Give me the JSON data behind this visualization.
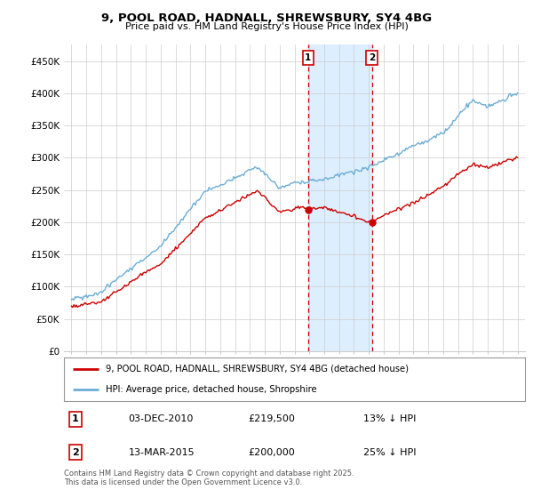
{
  "title1": "9, POOL ROAD, HADNALL, SHREWSBURY, SY4 4BG",
  "title2": "Price paid vs. HM Land Registry's House Price Index (HPI)",
  "ylabel_ticks": [
    "£0",
    "£50K",
    "£100K",
    "£150K",
    "£200K",
    "£250K",
    "£300K",
    "£350K",
    "£400K",
    "£450K"
  ],
  "ytick_vals": [
    0,
    50000,
    100000,
    150000,
    200000,
    250000,
    300000,
    350000,
    400000,
    450000
  ],
  "xlim": [
    1994.5,
    2025.5
  ],
  "ylim": [
    0,
    475000
  ],
  "vline1_x": 2010.92,
  "vline2_x": 2015.2,
  "vline1_label": "1",
  "vline2_label": "2",
  "sale1_x": 2010.92,
  "sale1_y": 219500,
  "sale2_x": 2015.2,
  "sale2_y": 200000,
  "legend_line1": "9, POOL ROAD, HADNALL, SHREWSBURY, SY4 4BG (detached house)",
  "legend_line2": "HPI: Average price, detached house, Shropshire",
  "table_row1": [
    "1",
    "03-DEC-2010",
    "£219,500",
    "13% ↓ HPI"
  ],
  "table_row2": [
    "2",
    "13-MAR-2015",
    "£200,000",
    "25% ↓ HPI"
  ],
  "footer": "Contains HM Land Registry data © Crown copyright and database right 2025.\nThis data is licensed under the Open Government Licence v3.0.",
  "red_color": "#cc0000",
  "blue_color": "#6baed6",
  "background_color": "#ffffff",
  "grid_color": "#cccccc",
  "vline_color": "#cc0000",
  "highlight_color": "#ddeeff"
}
